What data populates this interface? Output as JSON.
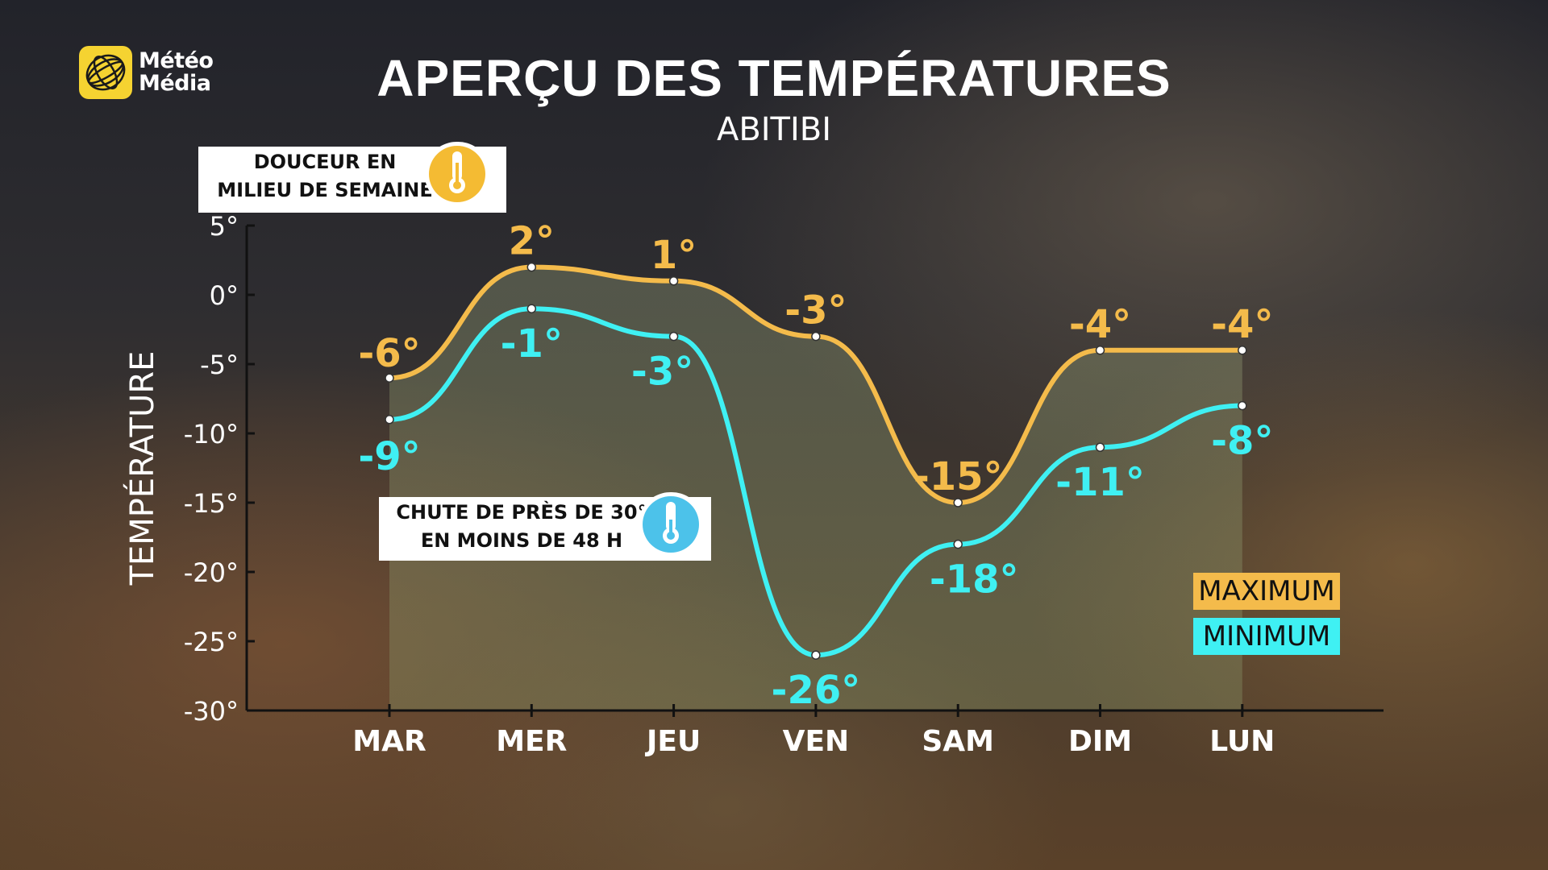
{
  "logo": {
    "line1": "Météo",
    "line2": "Média",
    "color": "#f5d331"
  },
  "title": "APERÇU DES TEMPÉRATURES",
  "subtitle": "ABITIBI",
  "callouts": [
    {
      "line1": "DOUCEUR EN",
      "line2": "MILIEU DE SEMAINE",
      "icon": "thermometer-icon",
      "color": "#f4bb33"
    },
    {
      "line1": "CHUTE DE PRÈS DE 30°",
      "line2": "EN MOINS DE 48 H",
      "icon": "thermometer-icon",
      "color": "#4cc2ea"
    }
  ],
  "legend": {
    "max": {
      "label": "MAXIMUM",
      "color": "#f4bb4b"
    },
    "min": {
      "label": "MINIMUM",
      "color": "#3ff0f3"
    }
  },
  "chart_data": {
    "type": "line",
    "ylabel": "TEMPÉRATURE",
    "xlabel": "",
    "categories": [
      "MAR",
      "MER",
      "JEU",
      "VEN",
      "SAM",
      "DIM",
      "LUN"
    ],
    "yticks": [
      5,
      0,
      -5,
      -10,
      -15,
      -20,
      -25,
      -30
    ],
    "ytick_labels": [
      "5°",
      "0°",
      "-5°",
      "-10°",
      "-15°",
      "-20°",
      "-25°",
      "-30°"
    ],
    "ylim": [
      -30,
      5
    ],
    "grid": false,
    "legend_position": "bottom-right",
    "series": [
      {
        "name": "MAXIMUM",
        "color": "#f4bb4b",
        "values": [
          -6,
          2,
          1,
          -3,
          -15,
          -4,
          -4
        ],
        "labels": [
          "-6°",
          "2°",
          "1°",
          "-3°",
          "-15°",
          "-4°",
          "-4°"
        ]
      },
      {
        "name": "MINIMUM",
        "color": "#3ff0f3",
        "values": [
          -9,
          -1,
          -3,
          -26,
          -18,
          -11,
          -8
        ],
        "labels": [
          "-9°",
          "-1°",
          "-3°",
          "-26°",
          "-18°",
          "-11°",
          "-8°"
        ]
      }
    ]
  }
}
